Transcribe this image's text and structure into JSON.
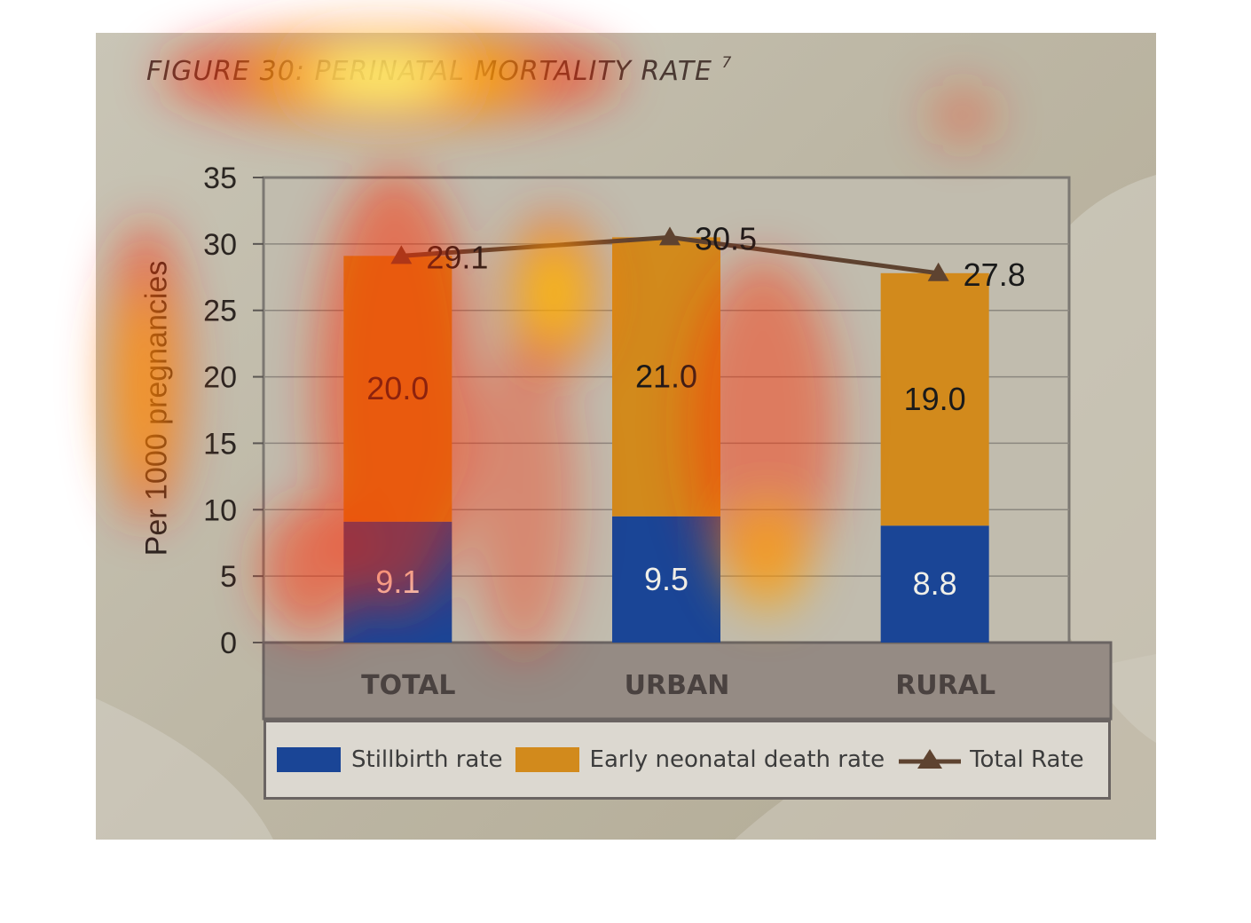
{
  "figure": {
    "title": "FIGURE 30: PERINATAL MORTALITY RATE",
    "title_superscript": "7"
  },
  "chart_data": {
    "type": "bar",
    "stacked": true,
    "categories": [
      "TOTAL",
      "URBAN",
      "RURAL"
    ],
    "series": [
      {
        "name": "Stillbirth rate",
        "type": "bar",
        "values": [
          9.1,
          9.5,
          8.8
        ],
        "color": "#1a4596",
        "label_color": "#f0efe8"
      },
      {
        "name": "Early neonatal death rate",
        "type": "bar",
        "values": [
          20.0,
          21.0,
          19.0
        ],
        "color": "#d28a1c",
        "label_color": "#1a1a1a"
      },
      {
        "name": "Total Rate",
        "type": "line",
        "values": [
          29.1,
          30.5,
          27.8
        ],
        "color": "#5e4330",
        "marker": "triangle",
        "label_color": "#1a1a1a"
      }
    ],
    "data_labels": {
      "Stillbirth rate": [
        "9.1",
        "9.5",
        "8.8"
      ],
      "Early neonatal death rate": [
        "20.0",
        "21.0",
        "19.0"
      ],
      "Total Rate": [
        "29.1",
        "30.5",
        "27.8"
      ]
    },
    "ylabel": "Per 1000 pregnancies",
    "xlabel": "",
    "ylim": [
      0,
      35
    ],
    "yticks": [
      0,
      5,
      10,
      15,
      20,
      25,
      30,
      35
    ],
    "grid": true,
    "legend_position": "bottom",
    "overlay": "attention heatmap (red-yellow) over the figure"
  }
}
